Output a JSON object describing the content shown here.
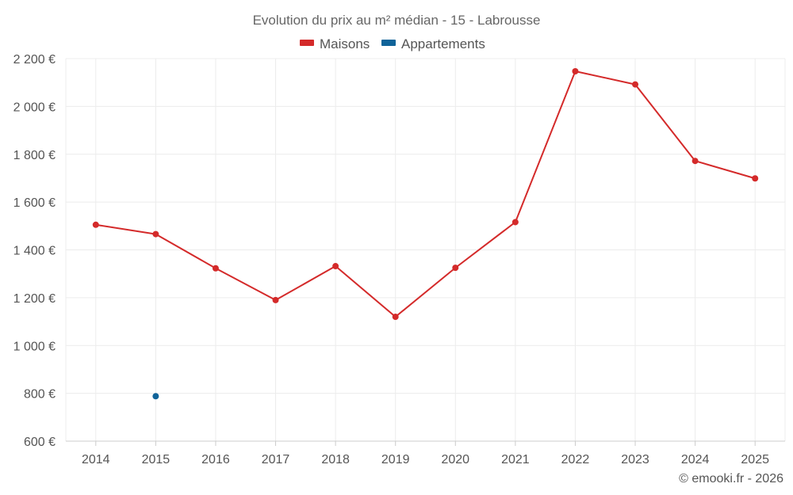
{
  "chart_data": {
    "type": "line",
    "title": "Evolution du prix au m² médian - 15 - Labrousse",
    "categories": [
      "2014",
      "2015",
      "2016",
      "2017",
      "2018",
      "2019",
      "2020",
      "2021",
      "2022",
      "2023",
      "2024",
      "2025"
    ],
    "ylim": [
      600,
      2200
    ],
    "yticks": [
      600,
      800,
      1000,
      1200,
      1400,
      1600,
      1800,
      2000,
      2200
    ],
    "ytick_labels": [
      "600 €",
      "800 €",
      "1 000 €",
      "1 200 €",
      "1 400 €",
      "1 600 €",
      "1 800 €",
      "2 000 €",
      "2 200 €"
    ],
    "grid": true,
    "legend_position": "top-center",
    "series": [
      {
        "name": "Maisons",
        "color": "#d42a2a",
        "values": [
          1505,
          1466,
          1323,
          1190,
          1332,
          1120,
          1325,
          1516,
          2147,
          2092,
          1772,
          1699
        ]
      },
      {
        "name": "Appartements",
        "color": "#0f6399",
        "values": [
          null,
          788,
          null,
          null,
          null,
          null,
          null,
          null,
          null,
          null,
          null,
          null
        ]
      }
    ],
    "credit": "© emooki.fr - 2026"
  }
}
